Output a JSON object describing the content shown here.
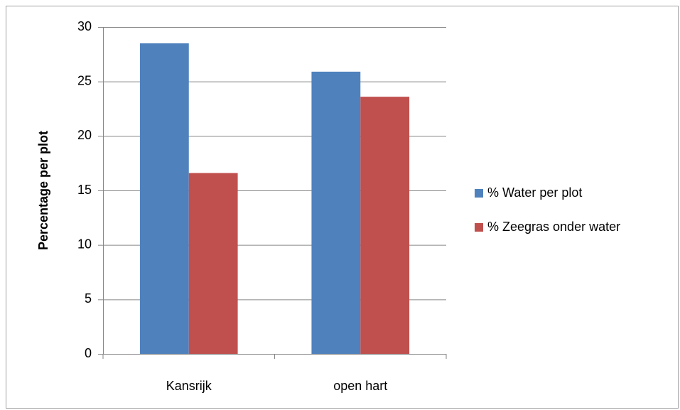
{
  "chart_data": {
    "type": "bar",
    "y_label": "Percentage per plot",
    "categories": [
      "Kansrijk",
      "open hart"
    ],
    "series": [
      {
        "name": "% Water per plot",
        "color": "#4f81bd",
        "values": [
          28.5,
          25.9
        ]
      },
      {
        "name": "% Zeegras onder water",
        "color": "#c0504d",
        "values": [
          16.6,
          23.6
        ]
      }
    ],
    "ylim": [
      0,
      30
    ],
    "yticks": [
      0,
      5,
      10,
      15,
      20,
      25,
      30
    ],
    "grid": true,
    "legend": "right"
  }
}
